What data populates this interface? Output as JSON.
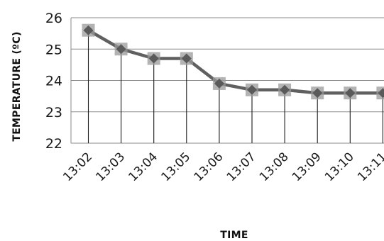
{
  "chart_data": {
    "type": "line",
    "title": "",
    "xlabel": "TIME",
    "ylabel": "TEMPERATURE (ºC)",
    "categories": [
      "13:02",
      "13:03",
      "13:04",
      "13:05",
      "13:06",
      "13:07",
      "13:08",
      "13:09",
      "13:10",
      "13:11"
    ],
    "series": [
      {
        "values": [
          25.6,
          25.0,
          24.7,
          24.7,
          23.9,
          23.7,
          23.7,
          23.6,
          23.6,
          23.6
        ],
        "color": "#606060",
        "marker": "square"
      }
    ],
    "ylim": [
      22,
      26
    ],
    "yticks": [
      22,
      23,
      24,
      25,
      26
    ],
    "grid": "horizontal",
    "drop_lines": true,
    "legend": "none"
  }
}
